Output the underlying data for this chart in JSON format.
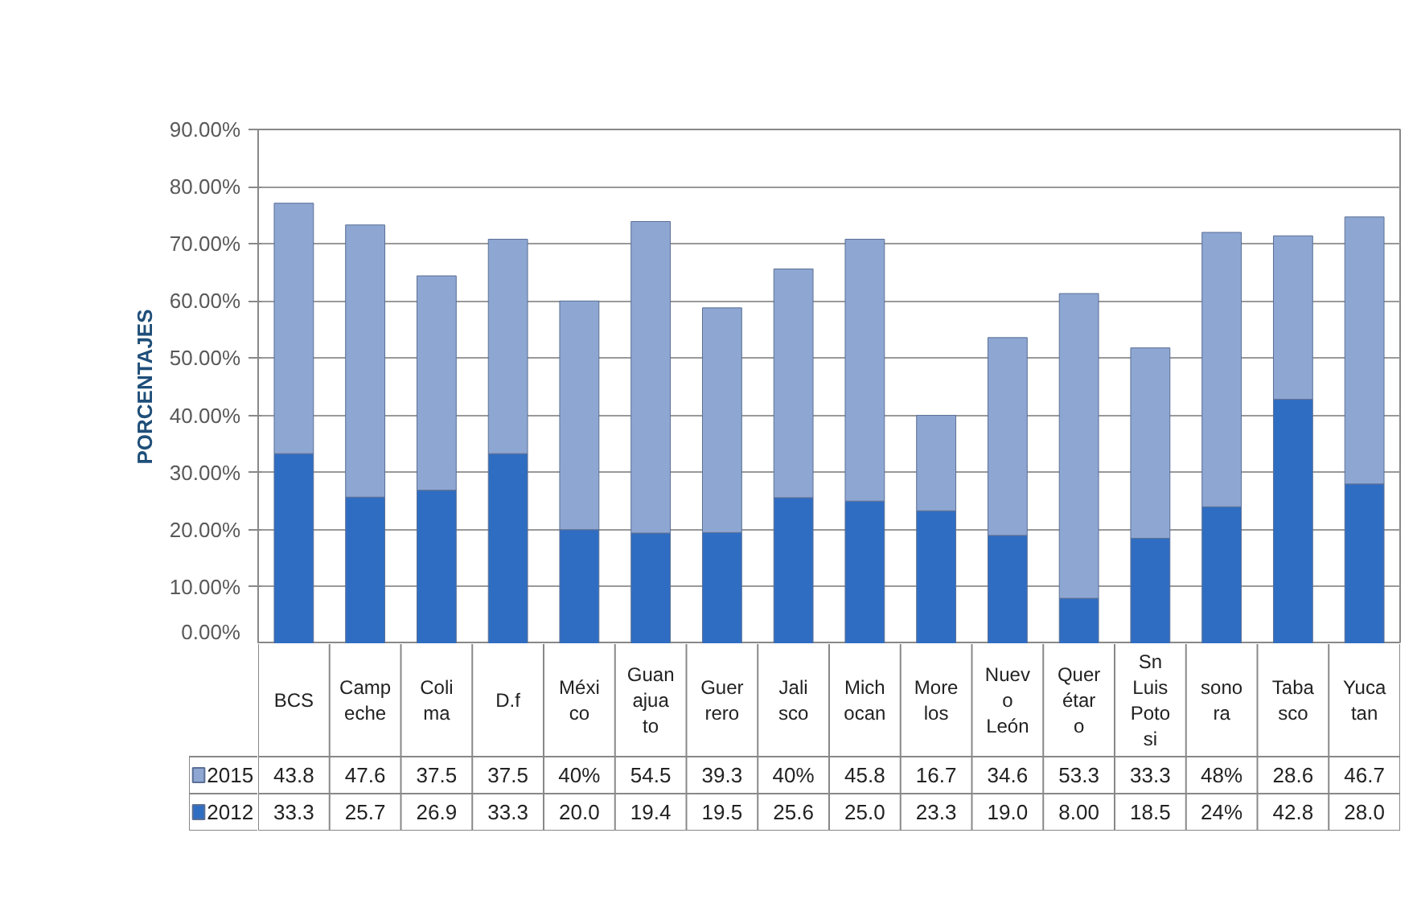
{
  "chart_data": {
    "type": "bar",
    "stacked": true,
    "ylabel": "PORCENTAJES",
    "categories": [
      "BCS",
      "Campeche",
      "Colima",
      "D.f",
      "México",
      "Guanajuato",
      "Guerrero",
      "Jalisco",
      "Michocan",
      "Morelos",
      "Nuevo León",
      "Querétaro",
      "Sn Luis Potosi",
      "sonora",
      "Tabasco",
      "Yucatan"
    ],
    "series": [
      {
        "name": "2012",
        "color": "#2f6dc2",
        "values": [
          33.3,
          25.7,
          26.9,
          33.3,
          20.0,
          19.4,
          19.5,
          25.6,
          25.0,
          23.3,
          19.0,
          8.0,
          18.5,
          24,
          42.8,
          28.0
        ],
        "value_labels": [
          "33.3",
          "25.7",
          "26.9",
          "33.3",
          "20.0",
          "19.4",
          "19.5",
          "25.6",
          "25.0",
          "23.3",
          "19.0",
          "8.00",
          "18.5",
          "24%",
          "42.8",
          "28.0"
        ]
      },
      {
        "name": "2015",
        "color": "#8ea6d2",
        "values": [
          43.8,
          47.6,
          37.5,
          37.5,
          40,
          54.5,
          39.3,
          40,
          45.8,
          16.7,
          34.6,
          53.3,
          33.3,
          48,
          28.6,
          46.7
        ],
        "value_labels": [
          "43.8",
          "47.6",
          "37.5",
          "37.5",
          "40%",
          "54.5",
          "39.3",
          "40%",
          "45.8",
          "16.7",
          "34.6",
          "53.3",
          "33.3",
          "48%",
          "28.6",
          "46.7"
        ]
      }
    ],
    "ylim": [
      0,
      90
    ],
    "yticks": [
      {
        "value": 0,
        "label": "0.00%"
      },
      {
        "value": 10,
        "label": "10.00%"
      },
      {
        "value": 20,
        "label": "20.00%"
      },
      {
        "value": 30,
        "label": "30.00%"
      },
      {
        "value": 40,
        "label": "40.00%"
      },
      {
        "value": 50,
        "label": "50.00%"
      },
      {
        "value": 60,
        "label": "60.00%"
      },
      {
        "value": 70,
        "label": "70.00%"
      },
      {
        "value": 80,
        "label": "80.00%"
      },
      {
        "value": 90,
        "label": "90.00%"
      }
    ],
    "grid": "y",
    "legend": "bottom"
  }
}
